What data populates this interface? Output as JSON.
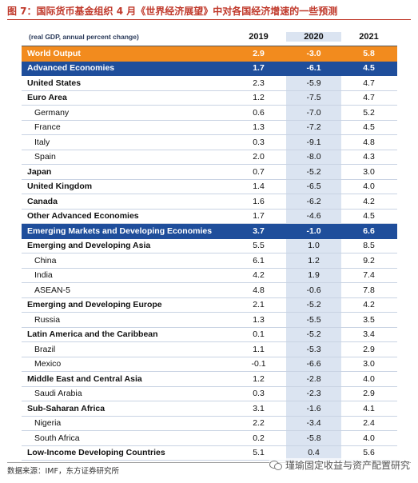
{
  "figure": {
    "title": "图 7：国际货币基金组织 4 月《世界经济展望》中对各国经济增速的一些预测",
    "source": "数据来源：IMF，东方证券研究所",
    "watermark": "瑾瑜固定收益与资产配置研究"
  },
  "table": {
    "header_label": "(real GDP, annual percent change)",
    "years": [
      "2019",
      "2020",
      "2021"
    ],
    "rows": [
      {
        "label": "World Output",
        "values": [
          "2.9",
          "-3.0",
          "5.8"
        ],
        "style": "world"
      },
      {
        "label": "Advanced Economies",
        "values": [
          "1.7",
          "-6.1",
          "4.5"
        ],
        "style": "blue"
      },
      {
        "label": "United States",
        "values": [
          "2.3",
          "-5.9",
          "4.7"
        ],
        "style": "bold"
      },
      {
        "label": "Euro Area",
        "values": [
          "1.2",
          "-7.5",
          "4.7"
        ],
        "style": "bold"
      },
      {
        "label": "Germany",
        "values": [
          "0.6",
          "-7.0",
          "5.2"
        ],
        "style": "sub"
      },
      {
        "label": "France",
        "values": [
          "1.3",
          "-7.2",
          "4.5"
        ],
        "style": "sub"
      },
      {
        "label": "Italy",
        "values": [
          "0.3",
          "-9.1",
          "4.8"
        ],
        "style": "sub"
      },
      {
        "label": "Spain",
        "values": [
          "2.0",
          "-8.0",
          "4.3"
        ],
        "style": "sub"
      },
      {
        "label": "Japan",
        "values": [
          "0.7",
          "-5.2",
          "3.0"
        ],
        "style": "bold"
      },
      {
        "label": "United Kingdom",
        "values": [
          "1.4",
          "-6.5",
          "4.0"
        ],
        "style": "bold"
      },
      {
        "label": "Canada",
        "values": [
          "1.6",
          "-6.2",
          "4.2"
        ],
        "style": "bold"
      },
      {
        "label": "Other Advanced Economies",
        "values": [
          "1.7",
          "-4.6",
          "4.5"
        ],
        "style": "bold"
      },
      {
        "label": "Emerging Markets and Developing Economies",
        "values": [
          "3.7",
          "-1.0",
          "6.6"
        ],
        "style": "blue"
      },
      {
        "label": "Emerging and Developing Asia",
        "values": [
          "5.5",
          "1.0",
          "8.5"
        ],
        "style": "bold"
      },
      {
        "label": "China",
        "values": [
          "6.1",
          "1.2",
          "9.2"
        ],
        "style": "sub"
      },
      {
        "label": "India",
        "values": [
          "4.2",
          "1.9",
          "7.4"
        ],
        "style": "sub"
      },
      {
        "label": "ASEAN-5",
        "values": [
          "4.8",
          "-0.6",
          "7.8"
        ],
        "style": "sub"
      },
      {
        "label": "Emerging and Developing Europe",
        "values": [
          "2.1",
          "-5.2",
          "4.2"
        ],
        "style": "bold"
      },
      {
        "label": "Russia",
        "values": [
          "1.3",
          "-5.5",
          "3.5"
        ],
        "style": "sub"
      },
      {
        "label": "Latin America and the Caribbean",
        "values": [
          "0.1",
          "-5.2",
          "3.4"
        ],
        "style": "bold"
      },
      {
        "label": "Brazil",
        "values": [
          "1.1",
          "-5.3",
          "2.9"
        ],
        "style": "sub"
      },
      {
        "label": "Mexico",
        "values": [
          "-0.1",
          "-6.6",
          "3.0"
        ],
        "style": "sub"
      },
      {
        "label": "Middle East and Central Asia",
        "values": [
          "1.2",
          "-2.8",
          "4.0"
        ],
        "style": "bold"
      },
      {
        "label": "Saudi Arabia",
        "values": [
          "0.3",
          "-2.3",
          "2.9"
        ],
        "style": "sub"
      },
      {
        "label": "Sub-Saharan Africa",
        "values": [
          "3.1",
          "-1.6",
          "4.1"
        ],
        "style": "bold"
      },
      {
        "label": "Nigeria",
        "values": [
          "2.2",
          "-3.4",
          "2.4"
        ],
        "style": "sub"
      },
      {
        "label": "South Africa",
        "values": [
          "0.2",
          "-5.8",
          "4.0"
        ],
        "style": "sub"
      },
      {
        "label": "Low-Income Developing Countries",
        "values": [
          "5.1",
          "0.4",
          "5.6"
        ],
        "style": "bold"
      }
    ]
  },
  "colors": {
    "world_row": "#f28b1e",
    "group_row": "#1f4e9b",
    "shaded_column": "#dbe4f1",
    "title_red": "#c0392b"
  }
}
